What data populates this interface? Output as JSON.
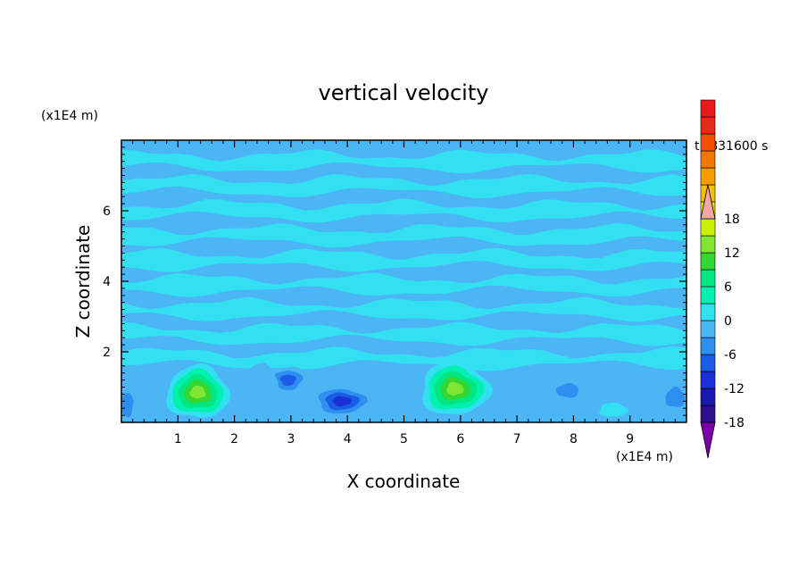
{
  "chart_data": {
    "type": "heatmap",
    "title": "vertical velocity",
    "xlabel": "X coordinate",
    "ylabel": "Z coordinate",
    "x_unit": "(x1E4 m)",
    "y_unit": "(x1E4 m)",
    "time_label": "t=831600 s",
    "xlim": [
      0,
      10
    ],
    "ylim": [
      0,
      8
    ],
    "x_ticks": [
      "1",
      "2",
      "3",
      "4",
      "5",
      "6",
      "7",
      "8",
      "9"
    ],
    "y_ticks": [
      "2",
      "4",
      "6"
    ],
    "colorbar": {
      "tick_labels": [
        "18",
        "12",
        "6",
        "0",
        "-6",
        "-12",
        "-18"
      ],
      "tick_values": [
        18,
        12,
        6,
        0,
        -6,
        -12,
        -18
      ],
      "range": [
        -21,
        21
      ],
      "step": 3,
      "extend": "both",
      "colors": [
        "#7b00a8",
        "#2e0f8c",
        "#1a1aa8",
        "#1a2fd6",
        "#1a5ce6",
        "#2e8ff0",
        "#4cb6f5",
        "#33e0f2",
        "#00f0b0",
        "#00e680",
        "#33d633",
        "#80e633",
        "#c8f000",
        "#f0e000",
        "#f5bf00",
        "#f59c00",
        "#f07800",
        "#f05000",
        "#e62a1a",
        "#e61a1a",
        "#f2a6a6"
      ]
    },
    "colormap_background_value": -0.5,
    "features": [
      {
        "x": 1.35,
        "z": 0.85,
        "value": 17,
        "sx": 0.55,
        "sz": 0.75
      },
      {
        "x": 5.9,
        "z": 0.95,
        "value": 16,
        "sx": 0.6,
        "sz": 0.75
      },
      {
        "x": 3.9,
        "z": 0.6,
        "value": -14,
        "sx": 0.55,
        "sz": 0.45
      },
      {
        "x": 2.95,
        "z": 1.2,
        "value": -9,
        "sx": 0.35,
        "sz": 0.4
      },
      {
        "x": 0.1,
        "z": 0.5,
        "value": -8,
        "sx": 0.2,
        "sz": 0.6
      },
      {
        "x": 7.9,
        "z": 0.9,
        "value": -8,
        "sx": 0.35,
        "sz": 0.35
      },
      {
        "x": 9.8,
        "z": 0.7,
        "value": -6,
        "sx": 0.3,
        "sz": 0.5
      },
      {
        "x": 8.7,
        "z": 0.35,
        "value": 4,
        "sx": 0.25,
        "sz": 0.2
      },
      {
        "x": 2.5,
        "z": 1.0,
        "value": -4,
        "sx": 0.25,
        "sz": 0.7
      },
      {
        "x": 4.6,
        "z": 1.0,
        "value": -5,
        "sx": 0.3,
        "sz": 0.7
      }
    ]
  }
}
